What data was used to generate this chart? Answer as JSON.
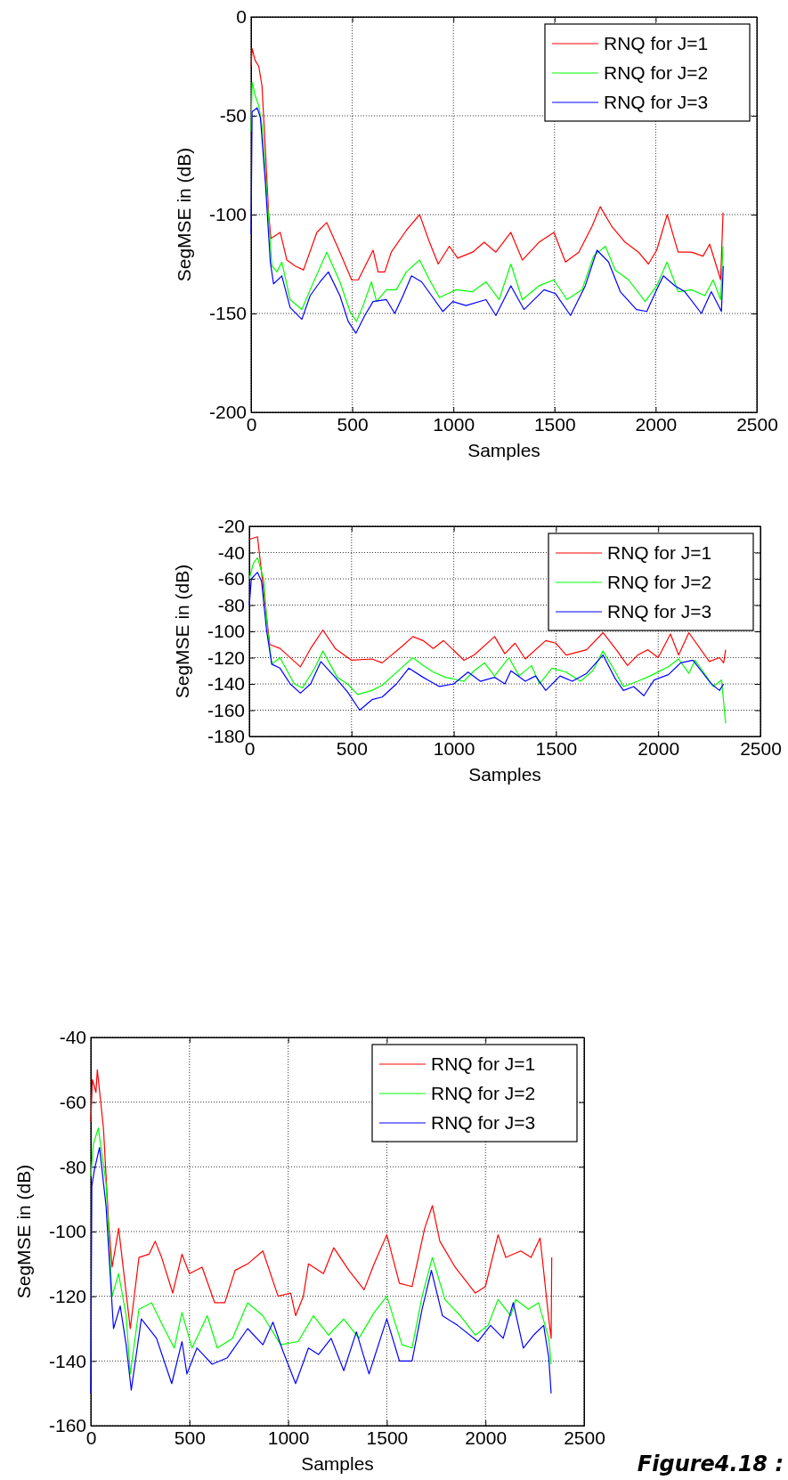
{
  "chart_data": [
    {
      "type": "line",
      "xlabel": "Samples",
      "ylabel": "SegMSE in (dB)",
      "xlim": [
        0,
        2500
      ],
      "xticks": [
        0,
        500,
        1000,
        1500,
        2000,
        2500
      ],
      "ylim": [
        -200,
        0
      ],
      "yticks": [
        -200,
        -150,
        -100,
        -50,
        0
      ],
      "grid": true,
      "legend": "top right",
      "series": [
        {
          "name": "RNQ for J=1",
          "color": "#ff0000",
          "x": [
            0,
            5,
            20,
            38,
            54,
            70,
            87,
            98,
            144,
            177,
            218,
            259,
            325,
            374,
            439,
            497,
            530,
            603,
            628,
            661,
            693,
            767,
            833,
            882,
            925,
            980,
            1021,
            1095,
            1152,
            1210,
            1284,
            1341,
            1423,
            1497,
            1554,
            1620,
            1685,
            1726,
            1783,
            1849,
            1915,
            1964,
            2005,
            2057,
            2111,
            2177,
            2234,
            2267,
            2321,
            2333
          ],
          "values": [
            -25,
            -16,
            -22,
            -25,
            -35,
            -66,
            -100,
            -112,
            -109,
            -123,
            -126,
            -128,
            -109,
            -104,
            -119,
            -133,
            -133,
            -118,
            -129,
            -129,
            -119,
            -108,
            -100,
            -114,
            -125,
            -116,
            -122,
            -119,
            -114,
            -119,
            -109,
            -123,
            -114,
            -109,
            -124,
            -119,
            -106,
            -96,
            -106,
            -114,
            -119,
            -125,
            -118,
            -100,
            -119,
            -119,
            -121,
            -115,
            -133,
            -99
          ]
        },
        {
          "name": "RNQ for J=2",
          "color": "#00ff00",
          "x": [
            0,
            5,
            21,
            38,
            54,
            79,
            103,
            128,
            152,
            193,
            251,
            292,
            374,
            439,
            489,
            521,
            554,
            595,
            620,
            669,
            718,
            767,
            833,
            882,
            931,
            1013,
            1095,
            1161,
            1226,
            1284,
            1341,
            1423,
            1497,
            1561,
            1636,
            1693,
            1751,
            1800,
            1866,
            1948,
            2005,
            2056,
            2111,
            2177,
            2243,
            2284,
            2321,
            2333
          ],
          "values": [
            -58,
            -33,
            -40,
            -45,
            -55,
            -91,
            -126,
            -129,
            -124,
            -143,
            -148,
            -138,
            -119,
            -134,
            -149,
            -154,
            -146,
            -134,
            -144,
            -138,
            -138,
            -129,
            -123,
            -133,
            -142,
            -138,
            -139,
            -134,
            -143,
            -125,
            -143,
            -136,
            -133,
            -143,
            -138,
            -121,
            -116,
            -128,
            -133,
            -144,
            -136,
            -124,
            -139,
            -138,
            -141,
            -133,
            -143,
            -116
          ]
        },
        {
          "name": "RNQ for J=3",
          "color": "#0000ff",
          "x": [
            0,
            5,
            30,
            46,
            70,
            95,
            111,
            152,
            193,
            251,
            292,
            341,
            382,
            439,
            480,
            518,
            562,
            603,
            669,
            710,
            751,
            793,
            843,
            892,
            948,
            997,
            1062,
            1161,
            1210,
            1284,
            1349,
            1448,
            1505,
            1579,
            1652,
            1710,
            1767,
            1825,
            1905,
            1956,
            2005,
            2038,
            2095,
            2144,
            2226,
            2275,
            2325,
            2334
          ],
          "values": [
            -110,
            -48,
            -46,
            -51,
            -83,
            -124,
            -135,
            -131,
            -147,
            -153,
            -141,
            -134,
            -129,
            -141,
            -154,
            -160,
            -151,
            -144,
            -143,
            -150,
            -141,
            -131,
            -134,
            -141,
            -149,
            -144,
            -146,
            -143,
            -151,
            -136,
            -148,
            -138,
            -140,
            -151,
            -136,
            -118,
            -124,
            -139,
            -148,
            -149,
            -138,
            -131,
            -136,
            -139,
            -150,
            -139,
            -149,
            -126
          ]
        }
      ]
    },
    {
      "type": "line",
      "xlabel": "Samples",
      "ylabel": "SegMSE in (dB)",
      "xlim": [
        0,
        2500
      ],
      "xticks": [
        0,
        500,
        1000,
        1500,
        2000,
        2500
      ],
      "ylim": [
        -180,
        -20
      ],
      "yticks": [
        -180,
        -160,
        -140,
        -120,
        -100,
        -80,
        -60,
        -40,
        -20
      ],
      "grid": true,
      "legend": "top right",
      "series": [
        {
          "name": "RNQ for J=1",
          "color": "#ff0000",
          "x": [
            0,
            40,
            100,
            150,
            250,
            300,
            360,
            420,
            500,
            600,
            650,
            750,
            800,
            850,
            900,
            950,
            1050,
            1100,
            1200,
            1250,
            1300,
            1350,
            1450,
            1500,
            1550,
            1650,
            1730,
            1800,
            1850,
            1900,
            1950,
            2000,
            2060,
            2100,
            2150,
            2250,
            2300,
            2320,
            2330
          ],
          "values": [
            -30,
            -28,
            -110,
            -113,
            -127,
            -113,
            -99,
            -113,
            -122,
            -121,
            -124,
            -111,
            -104,
            -107,
            -113,
            -107,
            -122,
            -118,
            -104,
            -117,
            -109,
            -121,
            -107,
            -109,
            -118,
            -114,
            -101,
            -115,
            -126,
            -118,
            -114,
            -120,
            -102,
            -118,
            -101,
            -123,
            -120,
            -124,
            -114
          ]
        },
        {
          "name": "RNQ for J=2",
          "color": "#00ff00",
          "x": [
            0,
            20,
            40,
            70,
            90,
            110,
            150,
            220,
            260,
            320,
            360,
            430,
            480,
            530,
            600,
            650,
            750,
            800,
            850,
            900,
            960,
            1050,
            1100,
            1150,
            1200,
            1270,
            1320,
            1380,
            1420,
            1480,
            1550,
            1620,
            1680,
            1730,
            1780,
            1830,
            1900,
            1960,
            2050,
            2100,
            2150,
            2180,
            2230,
            2270,
            2310,
            2330
          ],
          "values": [
            -60,
            -48,
            -44,
            -60,
            -100,
            -125,
            -120,
            -140,
            -143,
            -128,
            -115,
            -135,
            -140,
            -148,
            -145,
            -141,
            -127,
            -120,
            -126,
            -131,
            -135,
            -138,
            -130,
            -124,
            -134,
            -120,
            -134,
            -126,
            -140,
            -128,
            -131,
            -138,
            -130,
            -115,
            -128,
            -142,
            -138,
            -134,
            -127,
            -121,
            -132,
            -122,
            -133,
            -142,
            -137,
            -170
          ]
        },
        {
          "name": "RNQ for J=3",
          "color": "#0000ff",
          "x": [
            0,
            10,
            40,
            60,
            85,
            110,
            150,
            200,
            250,
            300,
            350,
            420,
            480,
            540,
            600,
            650,
            720,
            780,
            850,
            930,
            1000,
            1070,
            1130,
            1200,
            1250,
            1280,
            1350,
            1400,
            1450,
            1520,
            1580,
            1650,
            1730,
            1790,
            1830,
            1880,
            1930,
            1980,
            2050,
            2110,
            2170,
            2210,
            2260,
            2300,
            2320
          ],
          "values": [
            -80,
            -60,
            -55,
            -62,
            -100,
            -125,
            -128,
            -140,
            -147,
            -140,
            -123,
            -135,
            -146,
            -160,
            -152,
            -150,
            -140,
            -128,
            -135,
            -142,
            -140,
            -131,
            -138,
            -135,
            -140,
            -130,
            -138,
            -134,
            -145,
            -134,
            -138,
            -132,
            -118,
            -136,
            -145,
            -142,
            -149,
            -137,
            -133,
            -124,
            -122,
            -130,
            -140,
            -145,
            -140
          ]
        }
      ]
    },
    {
      "type": "line",
      "xlabel": "Samples",
      "ylabel": "SegMSE in (dB)",
      "xlim": [
        0,
        2500
      ],
      "xticks": [
        0,
        500,
        1000,
        1500,
        2000,
        2500
      ],
      "ylim": [
        -160,
        -40
      ],
      "yticks": [
        -160,
        -140,
        -120,
        -100,
        -80,
        -60,
        -40
      ],
      "grid": true,
      "legend": "top right",
      "annotations": [
        "Figure4.18 :"
      ],
      "series": [
        {
          "name": "RNQ for J=1",
          "color": "#ff0000",
          "x": [
            0,
            8,
            26,
            33,
            64,
            90,
            108,
            141,
            179,
            200,
            244,
            295,
            326,
            359,
            415,
            462,
            500,
            564,
            628,
            679,
            731,
            795,
            872,
            949,
            1013,
            1038,
            1077,
            1103,
            1179,
            1231,
            1308,
            1385,
            1436,
            1500,
            1564,
            1628,
            1692,
            1731,
            1769,
            1846,
            1949,
            2000,
            2064,
            2103,
            2179,
            2231,
            2277,
            2321,
            2333,
            2336
          ],
          "values": [
            -66,
            -53,
            -57,
            -50,
            -68,
            -97,
            -111,
            -99,
            -119,
            -130,
            -108,
            -107,
            -103,
            -108,
            -119,
            -107,
            -113,
            -111,
            -122,
            -122,
            -112,
            -110,
            -106,
            -120,
            -119,
            -126,
            -120,
            -110,
            -113,
            -105,
            -112,
            -118,
            -110,
            -101,
            -116,
            -117,
            -99,
            -92,
            -103,
            -111,
            -119,
            -117,
            -101,
            -108,
            -106,
            -108,
            -102,
            -127,
            -133,
            -108
          ]
        },
        {
          "name": "RNQ for J=2",
          "color": "#00ff00",
          "x": [
            0,
            13,
            38,
            77,
            108,
            141,
            179,
            200,
            244,
            308,
            372,
            423,
            462,
            513,
            590,
            641,
            718,
            795,
            872,
            962,
            1051,
            1128,
            1205,
            1282,
            1359,
            1436,
            1500,
            1577,
            1628,
            1679,
            1731,
            1795,
            1872,
            1949,
            2013,
            2064,
            2128,
            2154,
            2218,
            2269,
            2321,
            2333
          ],
          "values": [
            -83,
            -73,
            -68,
            -85,
            -120,
            -113,
            -126,
            -144,
            -124,
            -122,
            -130,
            -136,
            -125,
            -136,
            -126,
            -136,
            -133,
            -122,
            -126,
            -135,
            -134,
            -126,
            -132,
            -127,
            -133,
            -125,
            -120,
            -135,
            -136,
            -120,
            -108,
            -121,
            -126,
            -132,
            -129,
            -121,
            -126,
            -121,
            -124,
            -122,
            -133,
            -141
          ]
        },
        {
          "name": "RNQ for J=3",
          "color": "#0000ff",
          "x": [
            0,
            5,
            18,
            44,
            77,
            115,
            149,
            179,
            205,
            256,
            333,
            410,
            462,
            487,
            538,
            615,
            692,
            795,
            872,
            923,
            974,
            1038,
            1103,
            1154,
            1218,
            1282,
            1346,
            1410,
            1500,
            1564,
            1628,
            1679,
            1726,
            1782,
            1859,
            1962,
            2026,
            2090,
            2141,
            2192,
            2244,
            2295,
            2321,
            2333
          ],
          "values": [
            -150,
            -86,
            -81,
            -74,
            -92,
            -130,
            -123,
            -135,
            -149,
            -127,
            -133,
            -147,
            -134,
            -144,
            -136,
            -141,
            -139,
            -130,
            -135,
            -128,
            -137,
            -147,
            -136,
            -138,
            -133,
            -143,
            -131,
            -144,
            -127,
            -140,
            -140,
            -124,
            -112,
            -126,
            -129,
            -134,
            -129,
            -133,
            -122,
            -136,
            -132,
            -129,
            -139,
            -150
          ]
        }
      ]
    }
  ]
}
